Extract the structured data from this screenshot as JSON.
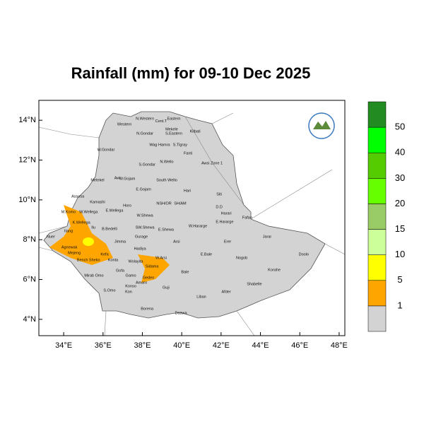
{
  "map": {
    "title": "Rainfall (mm) for 09-10 Dec 2025",
    "xlim": [
      32.74,
      48.29
    ],
    "ylim": [
      3.18,
      15.0
    ],
    "xticks": [
      {
        "value": 34,
        "label": "34°E"
      },
      {
        "value": 36,
        "label": "36°E"
      },
      {
        "value": 38,
        "label": "38°E"
      },
      {
        "value": 40,
        "label": "40°E"
      },
      {
        "value": 42,
        "label": "42°E"
      },
      {
        "value": 44,
        "label": "44°E"
      },
      {
        "value": 46,
        "label": "46°E"
      },
      {
        "value": 48,
        "label": "48°E"
      }
    ],
    "yticks": [
      {
        "value": 4,
        "label": "4°N"
      },
      {
        "value": 6,
        "label": "6°N"
      },
      {
        "value": 8,
        "label": "8°N"
      },
      {
        "value": 10,
        "label": "10°N"
      },
      {
        "value": 12,
        "label": "12°N"
      },
      {
        "value": 14,
        "label": "14°N"
      }
    ],
    "colorbar": {
      "levels": [
        1,
        5,
        10,
        15,
        20,
        30,
        40,
        50
      ],
      "colors": [
        "#d3d3d3",
        "#ffa500",
        "#ffff00",
        "#ccff99",
        "#99cc66",
        "#66ff00",
        "#55cc00",
        "#00ff00",
        "#228b22"
      ]
    },
    "regions": [
      {
        "label": "N.Western",
        "lon": 38.13,
        "lat": 14.07
      },
      {
        "label": "Cent.T",
        "lon": 38.95,
        "lat": 13.96
      },
      {
        "label": "Eastern",
        "lon": 39.6,
        "lat": 14.07
      },
      {
        "label": "Western",
        "lon": 37.09,
        "lat": 13.79
      },
      {
        "label": "Mekele",
        "lon": 39.49,
        "lat": 13.54
      },
      {
        "label": "S.Eastern",
        "lon": 39.6,
        "lat": 13.33
      },
      {
        "label": "Kilbati",
        "lon": 40.68,
        "lat": 13.43
      },
      {
        "label": "N.Gondar",
        "lon": 38.13,
        "lat": 13.33
      },
      {
        "label": "Wag Hamra",
        "lon": 38.88,
        "lat": 12.76
      },
      {
        "label": "S.Tigray",
        "lon": 39.92,
        "lat": 12.76
      },
      {
        "label": "W.Gondar",
        "lon": 36.15,
        "lat": 12.51
      },
      {
        "label": "Fanti",
        "lon": 40.32,
        "lat": 12.33
      },
      {
        "label": "S.Gondar",
        "lon": 38.24,
        "lat": 11.77
      },
      {
        "label": "N.Wello",
        "lon": 39.24,
        "lat": 11.91
      },
      {
        "label": "Awsi Zone 1",
        "lon": 41.54,
        "lat": 11.84
      },
      {
        "label": "Metekel",
        "lon": 35.72,
        "lat": 10.99
      },
      {
        "label": "Awi",
        "lon": 36.73,
        "lat": 11.09
      },
      {
        "label": "W.Gojam",
        "lon": 37.23,
        "lat": 11.06
      },
      {
        "label": "South Wello",
        "lon": 39.24,
        "lat": 10.99
      },
      {
        "label": "E.Gojam",
        "lon": 38.06,
        "lat": 10.52
      },
      {
        "label": "Hari",
        "lon": 40.28,
        "lat": 10.45
      },
      {
        "label": "Siti",
        "lon": 41.9,
        "lat": 10.28
      },
      {
        "label": "Assosa",
        "lon": 34.72,
        "lat": 10.17
      },
      {
        "label": "Kamashi",
        "lon": 35.72,
        "lat": 9.89
      },
      {
        "label": "Horo",
        "lon": 37.23,
        "lat": 9.71
      },
      {
        "label": "NSH/OR",
        "lon": 39.1,
        "lat": 9.82
      },
      {
        "label": "SH/AM",
        "lon": 39.92,
        "lat": 9.82
      },
      {
        "label": "D.D",
        "lon": 41.9,
        "lat": 9.64
      },
      {
        "label": "Harari",
        "lon": 42.26,
        "lat": 9.32
      },
      {
        "label": "Fafan",
        "lon": 43.33,
        "lat": 9.1
      },
      {
        "label": "M.Komo",
        "lon": 34.25,
        "lat": 9.39
      },
      {
        "label": "W.Wellega",
        "lon": 35.26,
        "lat": 9.39
      },
      {
        "label": "E.Wellega",
        "lon": 36.58,
        "lat": 9.46
      },
      {
        "label": "W.Shewa",
        "lon": 38.13,
        "lat": 9.21
      },
      {
        "label": "W.Hararge",
        "lon": 40.82,
        "lat": 8.68
      },
      {
        "label": "E.Hararge",
        "lon": 42.18,
        "lat": 8.89
      },
      {
        "label": "Jarar",
        "lon": 44.34,
        "lat": 8.15
      },
      {
        "label": "K.Wellega",
        "lon": 34.9,
        "lat": 8.86
      },
      {
        "label": "Ilu",
        "lon": 35.51,
        "lat": 8.61
      },
      {
        "label": "B.Bedelli",
        "lon": 36.33,
        "lat": 8.54
      },
      {
        "label": "SW.Shewa",
        "lon": 38.13,
        "lat": 8.61
      },
      {
        "label": "E.Shewa",
        "lon": 39.2,
        "lat": 8.5
      },
      {
        "label": "Nuer",
        "lon": 33.35,
        "lat": 8.15
      },
      {
        "label": "Itang",
        "lon": 34.25,
        "lat": 8.43
      },
      {
        "label": "Agnewak",
        "lon": 34.29,
        "lat": 7.62
      },
      {
        "label": "Jimma",
        "lon": 36.87,
        "lat": 7.9
      },
      {
        "label": "Gurage",
        "lon": 37.95,
        "lat": 8.15
      },
      {
        "label": "Arsi",
        "lon": 39.74,
        "lat": 7.9
      },
      {
        "label": "Erer",
        "lon": 42.33,
        "lat": 7.9
      },
      {
        "label": "Doolo",
        "lon": 46.2,
        "lat": 7.26
      },
      {
        "label": "Hadiya",
        "lon": 37.88,
        "lat": 7.55
      },
      {
        "label": "Mejeng",
        "lon": 34.54,
        "lat": 7.33
      },
      {
        "label": "Kefa",
        "lon": 36.08,
        "lat": 7.26
      },
      {
        "label": "E.Bale",
        "lon": 41.25,
        "lat": 7.26
      },
      {
        "label": "Nogob",
        "lon": 43.05,
        "lat": 7.08
      },
      {
        "label": "Bench Sheko",
        "lon": 35.26,
        "lat": 6.98
      },
      {
        "label": "Konta",
        "lon": 36.51,
        "lat": 6.98
      },
      {
        "label": "Wolayita",
        "lon": 37.66,
        "lat": 6.91
      },
      {
        "label": "W.Arsi",
        "lon": 38.95,
        "lat": 7.08
      },
      {
        "label": "Mirab Omo",
        "lon": 35.54,
        "lat": 6.2
      },
      {
        "label": "Gofa",
        "lon": 36.87,
        "lat": 6.45
      },
      {
        "label": "Bale",
        "lon": 40.17,
        "lat": 6.38
      },
      {
        "label": "Korahe",
        "lon": 44.7,
        "lat": 6.48
      },
      {
        "label": "Gamo",
        "lon": 37.41,
        "lat": 6.2
      },
      {
        "label": "Sidama",
        "lon": 38.49,
        "lat": 6.66
      },
      {
        "label": "Gedeo",
        "lon": 38.31,
        "lat": 6.09
      },
      {
        "label": "S.Omo",
        "lon": 36.33,
        "lat": 5.45
      },
      {
        "label": "Konso",
        "lon": 37.41,
        "lat": 5.67
      },
      {
        "label": "Amaro",
        "lon": 37.95,
        "lat": 5.84
      },
      {
        "label": "Guji",
        "lon": 39.2,
        "lat": 5.6
      },
      {
        "label": "Shabelle",
        "lon": 43.69,
        "lat": 5.77
      },
      {
        "label": "Kon",
        "lon": 37.3,
        "lat": 5.38
      },
      {
        "label": "Liban",
        "lon": 41.0,
        "lat": 5.13
      },
      {
        "label": "Afder",
        "lon": 42.26,
        "lat": 5.38
      },
      {
        "label": "Borena",
        "lon": 38.24,
        "lat": 4.53
      },
      {
        "label": "Daawa",
        "lon": 39.96,
        "lat": 4.32
      }
    ]
  }
}
